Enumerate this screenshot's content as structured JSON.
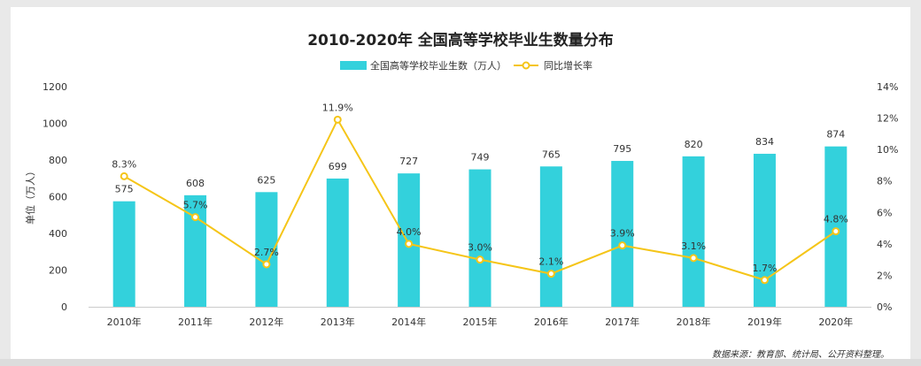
{
  "chart_data": {
    "type": "bar",
    "title": "2010-2020年  全国高等学校毕业生数量分布",
    "categories": [
      "2010年",
      "2011年",
      "2012年",
      "2013年",
      "2014年",
      "2015年",
      "2016年",
      "2017年",
      "2018年",
      "2019年",
      "2020年"
    ],
    "series": [
      {
        "name": "全国高等学校毕业生数（万人）",
        "type": "bar",
        "axis": "left",
        "values": [
          575,
          608,
          625,
          699,
          727,
          749,
          765,
          795,
          820,
          834,
          874
        ],
        "labels": [
          "575",
          "608",
          "625",
          "699",
          "727",
          "749",
          "765",
          "795",
          "820",
          "834",
          "874"
        ]
      },
      {
        "name": "同比增长率",
        "type": "line",
        "axis": "right",
        "values": [
          8.3,
          5.7,
          2.7,
          11.9,
          4.0,
          3.0,
          2.1,
          3.9,
          3.1,
          1.7,
          4.8
        ],
        "labels": [
          "8.3%",
          "5.7%",
          "2.7%",
          "11.9%",
          "4.0%",
          "3.0%",
          "2.1%",
          "3.9%",
          "3.1%",
          "1.7%",
          "4.8%"
        ]
      }
    ],
    "ylabel": "单位（万人）",
    "ylim": [
      0,
      1200
    ],
    "y_ticks": [
      "0",
      "200",
      "400",
      "600",
      "800",
      "1000",
      "1200"
    ],
    "y2lim": [
      0,
      14
    ],
    "y2_ticks": [
      "0%",
      "2%",
      "4%",
      "6%",
      "8%",
      "10%",
      "12%",
      "14%"
    ],
    "legend_position": "top-center",
    "grid": false,
    "colors": {
      "bar": "#33d1dc",
      "line": "#f5c518",
      "marker_fill": "#ffffff"
    }
  },
  "footnote": "数据来源：教育部、统计局、公开资料整理。"
}
